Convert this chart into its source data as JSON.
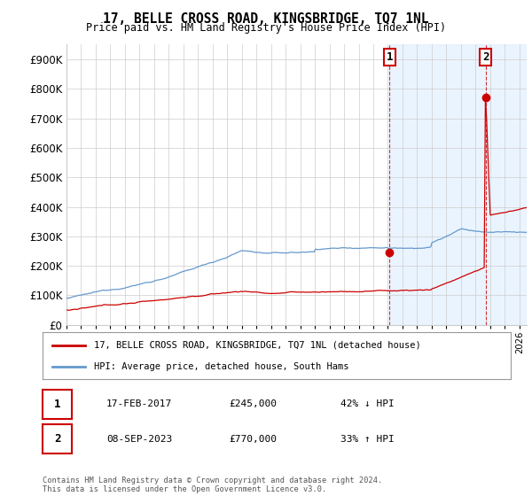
{
  "title": "17, BELLE CROSS ROAD, KINGSBRIDGE, TQ7 1NL",
  "subtitle": "Price paid vs. HM Land Registry's House Price Index (HPI)",
  "ytick_values": [
    0,
    100000,
    200000,
    300000,
    400000,
    500000,
    600000,
    700000,
    800000,
    900000
  ],
  "ylim": [
    0,
    950000
  ],
  "xlim_start": 1995.0,
  "xlim_end": 2026.5,
  "hpi_color": "#6699cc",
  "price_color": "#cc0000",
  "marker1_date": 2017.12,
  "marker1_price": 245000,
  "marker2_date": 2023.68,
  "marker2_price": 770000,
  "legend_line1": "17, BELLE CROSS ROAD, KINGSBRIDGE, TQ7 1NL (detached house)",
  "legend_line2": "HPI: Average price, detached house, South Hams",
  "annotation1_date": "17-FEB-2017",
  "annotation1_price": "£245,000",
  "annotation1_pct": "42% ↓ HPI",
  "annotation2_date": "08-SEP-2023",
  "annotation2_price": "£770,000",
  "annotation2_pct": "33% ↑ HPI",
  "footer": "Contains HM Land Registry data © Crown copyright and database right 2024.\nThis data is licensed under the Open Government Licence v3.0.",
  "bg_color": "#ffffff",
  "grid_color": "#cccccc",
  "hpi_shaded_color": "#ddeeff"
}
